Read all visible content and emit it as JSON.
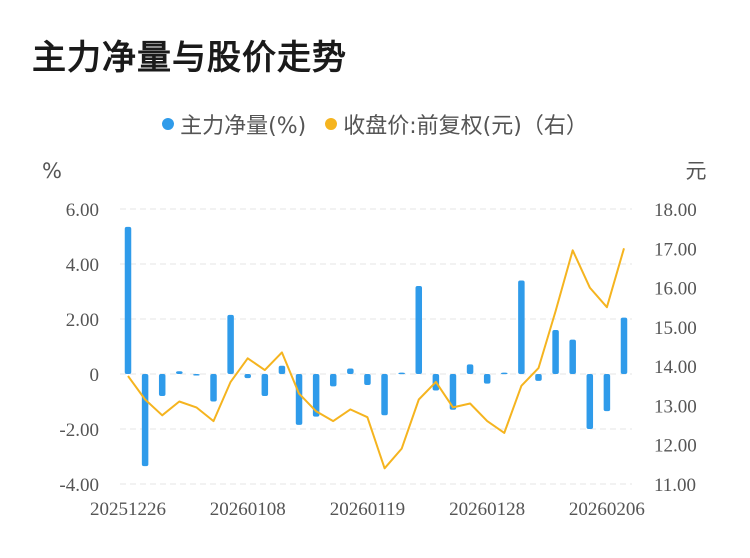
{
  "title": "主力净量与股价走势",
  "legend": [
    {
      "label": "主力净量(%)",
      "color": "#2f9bea"
    },
    {
      "label": "收盘价:前复权(元)（右）",
      "color": "#f5b41f"
    }
  ],
  "chart_data": {
    "type": "bar+line",
    "left_unit": "%",
    "right_unit": "元",
    "y_left": {
      "min": -4,
      "max": 6,
      "ticks": [
        "6.00",
        "4.00",
        "2.00",
        "0",
        "-2.00",
        "-4.00"
      ]
    },
    "y_right": {
      "min": 11,
      "max": 18,
      "ticks": [
        "18.00",
        "17.00",
        "16.00",
        "15.00",
        "14.00",
        "13.00",
        "12.00",
        "11.00"
      ]
    },
    "x_tick_labels": [
      {
        "index": 0,
        "label": "20251226"
      },
      {
        "index": 7,
        "label": "20260108"
      },
      {
        "index": 14,
        "label": "20260119"
      },
      {
        "index": 21,
        "label": "20260128"
      },
      {
        "index": 28,
        "label": "20260206"
      }
    ],
    "n_points": 30,
    "series": [
      {
        "name": "主力净量(%)",
        "kind": "bar",
        "color": "#2f9bea",
        "values": [
          5.35,
          -3.35,
          -0.8,
          0.1,
          0,
          -1.0,
          2.15,
          -0.15,
          -0.8,
          0.3,
          -1.85,
          -1.55,
          -0.45,
          0.2,
          -0.4,
          -1.5,
          0.05,
          3.2,
          -0.6,
          -1.3,
          0.35,
          -0.35,
          0.05,
          3.4,
          -0.25,
          1.6,
          1.25,
          -2.0,
          -1.35,
          2.05
        ]
      },
      {
        "name": "收盘价:前复权(元)（右）",
        "kind": "line",
        "color": "#f5b41f",
        "values": [
          13.75,
          13.15,
          12.75,
          13.1,
          12.95,
          12.6,
          13.6,
          14.2,
          13.9,
          14.35,
          13.3,
          12.85,
          12.6,
          12.9,
          12.7,
          11.4,
          11.9,
          13.15,
          13.6,
          12.95,
          13.05,
          12.6,
          12.3,
          13.5,
          13.95,
          15.4,
          16.95,
          16.0,
          15.5,
          17.0
        ]
      }
    ]
  }
}
